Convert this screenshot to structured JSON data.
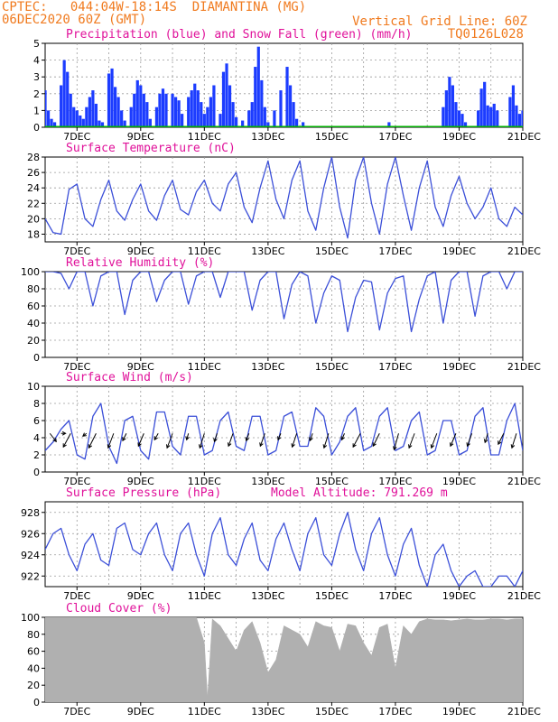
{
  "header": {
    "line1_left": "CPTEC:   044:04W-18:14S  DIAMANTINA (MG)",
    "line2_left": "06DEC2020 60Z (GMT)",
    "line1_right": "Vertical Grid Line: 60Z",
    "line2_right": "TQ0126L028"
  },
  "colors": {
    "header": "#f07a1e",
    "title": "#e0119a",
    "line": "#3b4fd8",
    "precip": "#1c3cff",
    "snow": "#00b000",
    "cloud": "#b0b0b0",
    "grid": "#9a9a9a"
  },
  "x_axis": {
    "day_start": 6,
    "day_end": 21,
    "tick_days": [
      7,
      9,
      11,
      13,
      15,
      17,
      19,
      21
    ],
    "tick_labels": [
      "7DEC",
      "9DEC",
      "11DEC",
      "13DEC",
      "15DEC",
      "17DEC",
      "19DEC",
      "21DEC"
    ]
  },
  "chart_data": [
    {
      "id": "precip",
      "type": "bar",
      "title": "Precipitation (blue) and Snow Fall (green) (mm/h)",
      "ylim": [
        0,
        5
      ],
      "yticks": [
        0,
        1,
        2,
        3,
        4,
        5
      ],
      "grid": true,
      "series": [
        {
          "name": "blue",
          "x": [
            6.0,
            6.1,
            6.2,
            6.3,
            6.5,
            6.6,
            6.7,
            6.8,
            6.9,
            7.0,
            7.1,
            7.2,
            7.3,
            7.4,
            7.5,
            7.6,
            7.7,
            7.8,
            8.0,
            8.1,
            8.2,
            8.3,
            8.4,
            8.5,
            8.7,
            8.8,
            8.9,
            9.0,
            9.1,
            9.2,
            9.3,
            9.5,
            9.6,
            9.7,
            9.8,
            10.0,
            10.1,
            10.2,
            10.3,
            10.5,
            10.6,
            10.7,
            10.8,
            10.9,
            11.0,
            11.1,
            11.2,
            11.3,
            11.5,
            11.6,
            11.7,
            11.8,
            11.9,
            12.0,
            12.2,
            12.4,
            12.5,
            12.6,
            12.7,
            12.8,
            12.9,
            13.0,
            13.2,
            13.4,
            13.6,
            13.7,
            13.8,
            13.9,
            14.1,
            16.8,
            18.5,
            18.6,
            18.7,
            18.8,
            18.9,
            19.0,
            19.1,
            19.2,
            19.6,
            19.7,
            19.8,
            19.9,
            20.0,
            20.1,
            20.2,
            20.6,
            20.7,
            20.8,
            20.9,
            21.0
          ],
          "values": [
            2.2,
            1.0,
            0.5,
            0.3,
            2.5,
            4.0,
            3.3,
            2.0,
            1.2,
            1.0,
            0.7,
            0.5,
            1.2,
            1.8,
            2.2,
            1.4,
            0.4,
            0.3,
            3.2,
            3.5,
            2.4,
            1.8,
            1.0,
            0.4,
            1.2,
            2.0,
            2.8,
            2.5,
            2.0,
            1.5,
            0.5,
            1.2,
            2.0,
            2.3,
            2.0,
            2.0,
            1.8,
            1.6,
            0.8,
            1.8,
            2.2,
            2.6,
            2.2,
            1.5,
            0.8,
            1.2,
            1.8,
            2.5,
            0.8,
            3.3,
            3.8,
            2.5,
            1.5,
            0.6,
            0.4,
            1.0,
            1.5,
            3.6,
            4.8,
            2.8,
            1.2,
            0.3,
            1.0,
            2.2,
            3.6,
            2.5,
            1.5,
            0.5,
            0.3,
            0.3,
            1.2,
            2.2,
            3.0,
            2.5,
            1.5,
            1.0,
            0.8,
            0.3,
            1.0,
            2.3,
            2.7,
            1.3,
            1.2,
            1.4,
            1.0,
            1.8,
            2.5,
            1.3,
            0.8,
            1.0
          ]
        },
        {
          "name": "green",
          "x": [
            6.0,
            21.0
          ],
          "values": [
            0,
            0
          ]
        }
      ]
    },
    {
      "id": "temperature",
      "type": "line",
      "title": "Surface Temperature (nC)",
      "ylim": [
        17,
        28
      ],
      "yticks": [
        18,
        20,
        22,
        24,
        26,
        28
      ],
      "grid": true,
      "x": [
        6.0,
        6.25,
        6.5,
        6.75,
        7.0,
        7.25,
        7.5,
        7.75,
        8.0,
        8.25,
        8.5,
        8.75,
        9.0,
        9.25,
        9.5,
        9.75,
        10.0,
        10.25,
        10.5,
        10.75,
        11.0,
        11.25,
        11.5,
        11.75,
        12.0,
        12.25,
        12.5,
        12.75,
        13.0,
        13.25,
        13.5,
        13.75,
        14.0,
        14.25,
        14.5,
        14.75,
        15.0,
        15.25,
        15.5,
        15.75,
        16.0,
        16.25,
        16.5,
        16.75,
        17.0,
        17.25,
        17.5,
        17.75,
        18.0,
        18.25,
        18.5,
        18.75,
        19.0,
        19.25,
        19.5,
        19.75,
        20.0,
        20.25,
        20.5,
        20.75,
        21.0
      ],
      "values": [
        20.0,
        18.2,
        18.0,
        23.8,
        24.5,
        20.0,
        19.0,
        22.5,
        25.0,
        21.0,
        19.8,
        22.5,
        24.5,
        21.0,
        19.8,
        23.0,
        25.0,
        21.2,
        20.5,
        23.5,
        25.0,
        22.0,
        21.0,
        24.5,
        26.0,
        21.5,
        19.5,
        24.0,
        27.5,
        22.5,
        20.0,
        25.0,
        27.5,
        21.0,
        18.5,
        24.0,
        28.0,
        21.5,
        17.5,
        25.0,
        28.0,
        22.0,
        18.0,
        24.5,
        28.0,
        23.0,
        18.5,
        24.0,
        27.5,
        21.5,
        19.0,
        23.0,
        25.5,
        22.0,
        20.0,
        21.5,
        24.0,
        20.0,
        19.0,
        21.5,
        20.5
      ]
    },
    {
      "id": "humidity",
      "type": "line",
      "title": "Relative Humidity (%)",
      "ylim": [
        0,
        100
      ],
      "yticks": [
        0,
        20,
        40,
        60,
        80,
        100
      ],
      "grid": true,
      "x": [
        6.0,
        6.25,
        6.5,
        6.75,
        7.0,
        7.25,
        7.5,
        7.75,
        8.0,
        8.25,
        8.5,
        8.75,
        9.0,
        9.25,
        9.5,
        9.75,
        10.0,
        10.25,
        10.5,
        10.75,
        11.0,
        11.25,
        11.5,
        11.75,
        12.0,
        12.25,
        12.5,
        12.75,
        13.0,
        13.25,
        13.5,
        13.75,
        14.0,
        14.25,
        14.5,
        14.75,
        15.0,
        15.25,
        15.5,
        15.75,
        16.0,
        16.25,
        16.5,
        16.75,
        17.0,
        17.25,
        17.5,
        17.75,
        18.0,
        18.25,
        18.5,
        18.75,
        19.0,
        19.25,
        19.5,
        19.75,
        20.0,
        20.25,
        20.5,
        20.75,
        21.0
      ],
      "values": [
        100,
        100,
        98,
        80,
        100,
        100,
        60,
        95,
        100,
        100,
        50,
        90,
        100,
        100,
        65,
        90,
        100,
        100,
        62,
        95,
        100,
        100,
        70,
        100,
        100,
        100,
        55,
        90,
        100,
        100,
        45,
        85,
        100,
        95,
        40,
        75,
        95,
        90,
        30,
        70,
        90,
        88,
        32,
        75,
        92,
        95,
        30,
        68,
        95,
        100,
        40,
        90,
        100,
        100,
        48,
        95,
        100,
        100,
        80,
        100,
        100
      ]
    },
    {
      "id": "wind",
      "type": "line",
      "title": "Surface Wind (m/s)",
      "ylim": [
        0,
        10
      ],
      "yticks": [
        0,
        2,
        4,
        6,
        8,
        10
      ],
      "grid": true,
      "x": [
        6.0,
        6.25,
        6.5,
        6.75,
        7.0,
        7.25,
        7.5,
        7.75,
        8.0,
        8.25,
        8.5,
        8.75,
        9.0,
        9.25,
        9.5,
        9.75,
        10.0,
        10.25,
        10.5,
        10.75,
        11.0,
        11.25,
        11.5,
        11.75,
        12.0,
        12.25,
        12.5,
        12.75,
        13.0,
        13.25,
        13.5,
        13.75,
        14.0,
        14.25,
        14.5,
        14.75,
        15.0,
        15.25,
        15.5,
        15.75,
        16.0,
        16.25,
        16.5,
        16.75,
        17.0,
        17.25,
        17.5,
        17.75,
        18.0,
        18.25,
        18.5,
        18.75,
        19.0,
        19.25,
        19.5,
        19.75,
        20.0,
        20.25,
        20.5,
        20.75,
        21.0
      ],
      "values": [
        2.5,
        3.5,
        5.0,
        6.0,
        2.0,
        1.5,
        6.5,
        8.0,
        3.0,
        1.0,
        6.0,
        6.5,
        2.5,
        1.5,
        7.0,
        7.0,
        3.0,
        2.0,
        6.5,
        6.5,
        2.0,
        2.5,
        6.0,
        7.0,
        3.0,
        2.5,
        6.5,
        6.5,
        2.0,
        2.5,
        6.5,
        7.0,
        3.0,
        3.0,
        7.5,
        6.5,
        2.0,
        3.5,
        6.5,
        7.5,
        2.5,
        3.0,
        6.5,
        7.5,
        2.5,
        3.0,
        6.0,
        7.0,
        2.0,
        2.5,
        6.0,
        6.0,
        2.0,
        2.5,
        6.5,
        7.5,
        2.0,
        2.0,
        6.0,
        8.0,
        2.5
      ],
      "vectors": [
        {
          "x": 6.15,
          "dx": 7,
          "dy": -9
        },
        {
          "x": 6.5,
          "dx": 5,
          "dy": 0
        },
        {
          "x": 6.8,
          "dx": -8,
          "dy": -15
        },
        {
          "x": 7.3,
          "dx": -4,
          "dy": -3
        },
        {
          "x": 7.6,
          "dx": -8,
          "dy": -16
        },
        {
          "x": 8.15,
          "dx": -6,
          "dy": -16
        },
        {
          "x": 8.55,
          "dx": -4,
          "dy": -8
        },
        {
          "x": 9.1,
          "dx": -6,
          "dy": -14
        },
        {
          "x": 9.55,
          "dx": -4,
          "dy": -7
        },
        {
          "x": 10.0,
          "dx": -6,
          "dy": -16
        },
        {
          "x": 10.5,
          "dx": -2,
          "dy": -7
        },
        {
          "x": 11.0,
          "dx": -5,
          "dy": -16
        },
        {
          "x": 11.4,
          "dx": -3,
          "dy": -9
        },
        {
          "x": 11.9,
          "dx": -5,
          "dy": -14
        },
        {
          "x": 12.4,
          "dx": -3,
          "dy": -8
        },
        {
          "x": 12.9,
          "dx": -5,
          "dy": -14
        },
        {
          "x": 13.4,
          "dx": -3,
          "dy": -7
        },
        {
          "x": 13.9,
          "dx": -5,
          "dy": -15
        },
        {
          "x": 14.4,
          "dx": -3,
          "dy": -8
        },
        {
          "x": 14.9,
          "dx": -5,
          "dy": -16
        },
        {
          "x": 15.4,
          "dx": -3,
          "dy": -7
        },
        {
          "x": 15.9,
          "dx": -8,
          "dy": -15
        },
        {
          "x": 16.5,
          "dx": -7,
          "dy": -14
        },
        {
          "x": 17.1,
          "dx": -5,
          "dy": -18
        },
        {
          "x": 17.6,
          "dx": -6,
          "dy": -16
        },
        {
          "x": 18.3,
          "dx": -6,
          "dy": -16
        },
        {
          "x": 18.9,
          "dx": -6,
          "dy": -14
        },
        {
          "x": 19.4,
          "dx": -5,
          "dy": -14
        },
        {
          "x": 19.9,
          "dx": -3,
          "dy": -10
        },
        {
          "x": 20.4,
          "dx": -6,
          "dy": -12
        },
        {
          "x": 20.8,
          "dx": -5,
          "dy": -16
        }
      ]
    },
    {
      "id": "pressure",
      "type": "line",
      "title": "Surface Pressure (hPa)",
      "subtitle": "Model Altitude: 791.269 m",
      "ylim": [
        921,
        929
      ],
      "yticks": [
        922,
        924,
        926,
        928
      ],
      "grid": true,
      "x": [
        6.0,
        6.25,
        6.5,
        6.75,
        7.0,
        7.25,
        7.5,
        7.75,
        8.0,
        8.25,
        8.5,
        8.75,
        9.0,
        9.25,
        9.5,
        9.75,
        10.0,
        10.25,
        10.5,
        10.75,
        11.0,
        11.25,
        11.5,
        11.75,
        12.0,
        12.25,
        12.5,
        12.75,
        13.0,
        13.25,
        13.5,
        13.75,
        14.0,
        14.25,
        14.5,
        14.75,
        15.0,
        15.25,
        15.5,
        15.75,
        16.0,
        16.25,
        16.5,
        16.75,
        17.0,
        17.25,
        17.5,
        17.75,
        18.0,
        18.25,
        18.5,
        18.75,
        19.0,
        19.25,
        19.5,
        19.75,
        20.0,
        20.25,
        20.5,
        20.75,
        21.0
      ],
      "values": [
        924.5,
        926.0,
        926.5,
        924.0,
        922.5,
        925.0,
        926.0,
        923.5,
        923.0,
        926.5,
        927.0,
        924.5,
        924.0,
        926.0,
        927.0,
        924.0,
        922.5,
        926.0,
        927.0,
        924.0,
        922.0,
        926.0,
        927.5,
        924.0,
        923.0,
        925.5,
        927.0,
        923.5,
        922.5,
        925.5,
        927.0,
        924.5,
        922.5,
        926.0,
        927.5,
        924.0,
        923.0,
        926.0,
        928.0,
        924.5,
        922.5,
        926.0,
        927.5,
        924.0,
        922.0,
        925.0,
        926.5,
        923.0,
        921.0,
        924.0,
        925.0,
        922.5,
        921.0,
        922.0,
        922.5,
        921.0,
        921.0,
        922.0,
        922.0,
        921.0,
        922.5
      ]
    },
    {
      "id": "cloud",
      "type": "area",
      "title": "Cloud Cover (%)",
      "ylim": [
        0,
        100
      ],
      "yticks": [
        0,
        20,
        40,
        60,
        80,
        100
      ],
      "grid": true,
      "x": [
        6.0,
        6.25,
        6.5,
        6.75,
        7.0,
        7.25,
        7.5,
        7.75,
        8.0,
        8.25,
        8.5,
        8.75,
        9.0,
        9.25,
        9.5,
        9.75,
        10.0,
        10.25,
        10.5,
        10.75,
        11.0,
        11.1,
        11.25,
        11.5,
        11.75,
        12.0,
        12.25,
        12.5,
        12.75,
        13.0,
        13.25,
        13.5,
        13.75,
        14.0,
        14.25,
        14.5,
        14.75,
        15.0,
        15.25,
        15.5,
        15.75,
        16.0,
        16.25,
        16.5,
        16.75,
        17.0,
        17.25,
        17.5,
        17.75,
        18.0,
        18.25,
        18.5,
        18.75,
        19.0,
        19.25,
        19.5,
        19.75,
        20.0,
        20.25,
        20.5,
        20.75,
        21.0
      ],
      "values": [
        100,
        100,
        100,
        100,
        100,
        100,
        100,
        100,
        100,
        100,
        100,
        100,
        100,
        100,
        100,
        100,
        100,
        100,
        100,
        100,
        70,
        5,
        98,
        90,
        75,
        60,
        85,
        95,
        70,
        35,
        50,
        90,
        85,
        80,
        65,
        95,
        90,
        88,
        60,
        92,
        90,
        70,
        55,
        88,
        92,
        40,
        90,
        80,
        95,
        98,
        97,
        97,
        96,
        97,
        98,
        97,
        97,
        98,
        98,
        97,
        98,
        98
      ]
    }
  ]
}
